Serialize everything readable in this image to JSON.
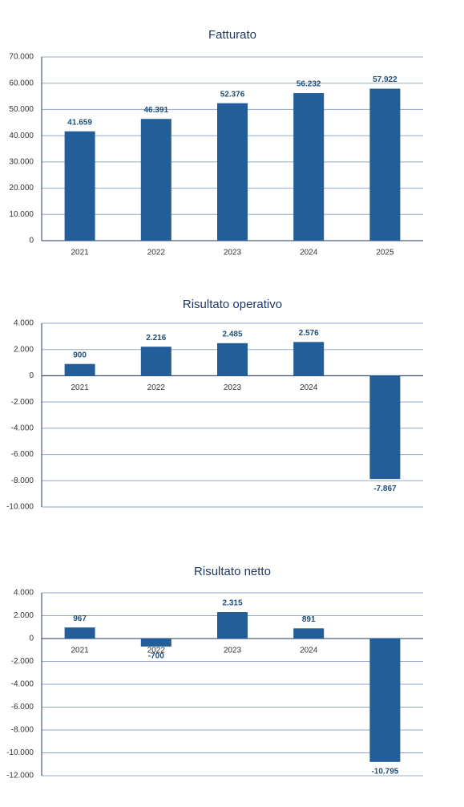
{
  "chart_data": [
    {
      "type": "bar",
      "title": "Fatturato",
      "categories": [
        "2021",
        "2022",
        "2023",
        "2024",
        "2025"
      ],
      "values": [
        41659,
        46391,
        52376,
        56232,
        57922
      ],
      "value_labels": [
        "41.659",
        "46.391",
        "52.376",
        "56.232",
        "57.922"
      ],
      "color": "#245e9a",
      "ylim": [
        0,
        70000
      ],
      "yticks": [
        0,
        {
          "value": 10000,
          "label": "10.000"
        },
        {
          "value": 20000,
          "label": "20.000"
        },
        {
          "value": 30000,
          "label": "30.000"
        },
        {
          "value": 40000,
          "label": "40.000"
        },
        {
          "value": 50000,
          "label": "50.000"
        },
        {
          "value": 60000,
          "label": "60.000"
        },
        {
          "value": 70000,
          "label": "70.000"
        }
      ],
      "grid": true
    },
    {
      "type": "bar",
      "title": "Risultato operativo",
      "categories": [
        "2021",
        "2022",
        "2023",
        "2024",
        null
      ],
      "values": [
        900,
        2216,
        2485,
        2576,
        -7867
      ],
      "value_labels": [
        "900",
        "2.216",
        "2.485",
        "2.576",
        "-7.867"
      ],
      "color": "#245e9a",
      "ylim": [
        -10000,
        4000
      ],
      "yticks": [
        {
          "value": -10000,
          "label": "-10.000"
        },
        {
          "value": -8000,
          "label": "-8.000"
        },
        {
          "value": -6000,
          "label": "-6.000"
        },
        {
          "value": -4000,
          "label": "-4.000"
        },
        {
          "value": -2000,
          "label": "-2.000"
        },
        0,
        {
          "value": 2000,
          "label": "2.000"
        },
        {
          "value": 4000,
          "label": "4.000"
        }
      ],
      "grid": true
    },
    {
      "type": "bar",
      "title": "Risultato netto",
      "categories": [
        "2021",
        "2022",
        "2023",
        "2024",
        null
      ],
      "values": [
        967,
        -700,
        2315,
        891,
        -10795
      ],
      "value_labels": [
        "967",
        "-700",
        "2.315",
        "891",
        "-10.795"
      ],
      "color": "#245e9a",
      "ylim": [
        -12000,
        4000
      ],
      "yticks": [
        {
          "value": -12000,
          "label": "-12.000"
        },
        {
          "value": -10000,
          "label": "-10.000"
        },
        {
          "value": -8000,
          "label": "-8.000"
        },
        {
          "value": -6000,
          "label": "-6.000"
        },
        {
          "value": -4000,
          "label": "-4.000"
        },
        {
          "value": -2000,
          "label": "-2.000"
        },
        0,
        {
          "value": 2000,
          "label": "2.000"
        },
        {
          "value": 4000,
          "label": "4.000"
        }
      ],
      "grid": true
    }
  ]
}
